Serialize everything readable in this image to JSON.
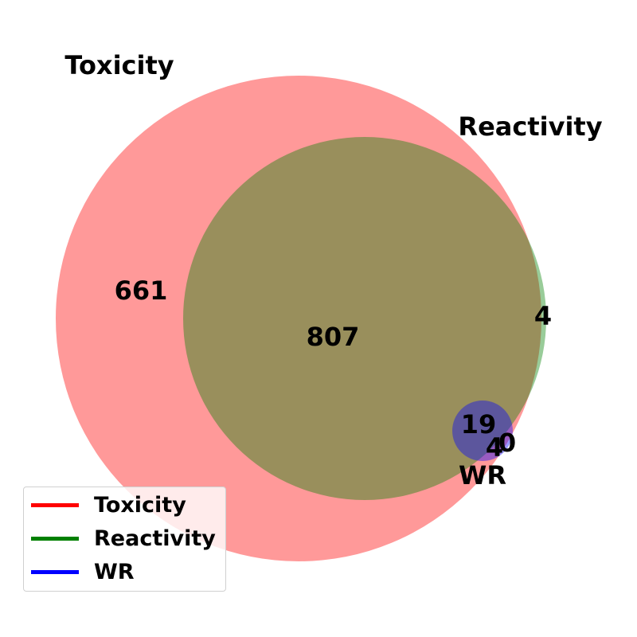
{
  "chart_data": {
    "type": "venn",
    "sets": [
      {
        "name": "Toxicity",
        "label": "Toxicity",
        "color": "#ff0000"
      },
      {
        "name": "Reactivity",
        "label": "Reactivity",
        "color": "#008000"
      },
      {
        "name": "WR",
        "label": "WR",
        "color": "#0000ff"
      }
    ],
    "regions": [
      {
        "sets": [
          "Toxicity"
        ],
        "value": "661"
      },
      {
        "sets": [
          "Toxicity",
          "Reactivity"
        ],
        "value": "807"
      },
      {
        "sets": [
          "Reactivity"
        ],
        "value": "4"
      },
      {
        "sets": [
          "Toxicity",
          "Reactivity",
          "WR"
        ],
        "value": "19"
      },
      {
        "sets": [
          "Toxicity",
          "WR"
        ],
        "value": "4"
      },
      {
        "sets": [
          "WR"
        ],
        "value": "0"
      }
    ],
    "legend": {
      "position": "bottom-left",
      "entries": [
        "Toxicity",
        "Reactivity",
        "WR"
      ]
    }
  }
}
